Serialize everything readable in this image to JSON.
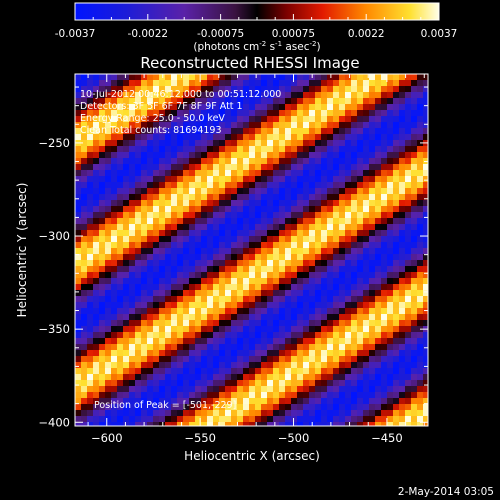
{
  "chart_data": {
    "type": "heatmap",
    "title": "Reconstructed RHESSI Image",
    "xlabel": "Heliocentric X (arcsec)",
    "ylabel": "Heliocentric Y (arcsec)",
    "xlim": [
      -617,
      -428
    ],
    "ylim": [
      -402,
      -213
    ],
    "x_ticks": [
      -600,
      -550,
      -500,
      -450
    ],
    "y_ticks": [
      -250,
      -300,
      -350,
      -400
    ],
    "colorbar": {
      "range": [
        -0.0037,
        0.0037
      ],
      "ticks": [
        "-0.0037",
        "-0.0022",
        "-0.00075",
        "0.00075",
        "0.0022",
        "0.0037"
      ],
      "unit_text": "(photons cm",
      "unit_sup1": "-2",
      "unit_mid1": " s",
      "unit_sup2": "-1",
      "unit_mid2": " asec",
      "unit_sup3": "-2",
      "unit_end": ")"
    },
    "annotations": [
      "10-Jul-2012 00:46:12.000 to 00:51:12.000",
      "Detectors: 3F 5F 6F 7F 8F 9F Att 1",
      "Energy Range: 25.0 - 50.0 keV",
      "Clean     Total counts: 81694193"
    ],
    "peak_text": "Position of Peak = [-501,-229]",
    "footer_date": "2-May-2014 03:05",
    "grid": false,
    "pattern": {
      "stripe_direction": "diagonal, rising to upper-right",
      "fine_stripe_period": 10.5,
      "coarse_band_period": 122
    }
  }
}
